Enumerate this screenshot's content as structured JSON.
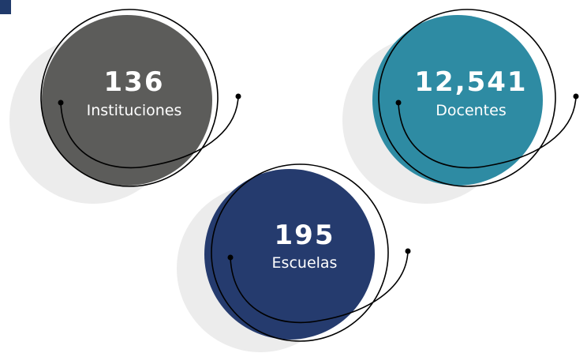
{
  "items": [
    {
      "number": "136",
      "label": "Instituciones"
    },
    {
      "number": "12,541",
      "label": "Docentes"
    },
    {
      "number": "195",
      "label": "Escuelas"
    }
  ]
}
